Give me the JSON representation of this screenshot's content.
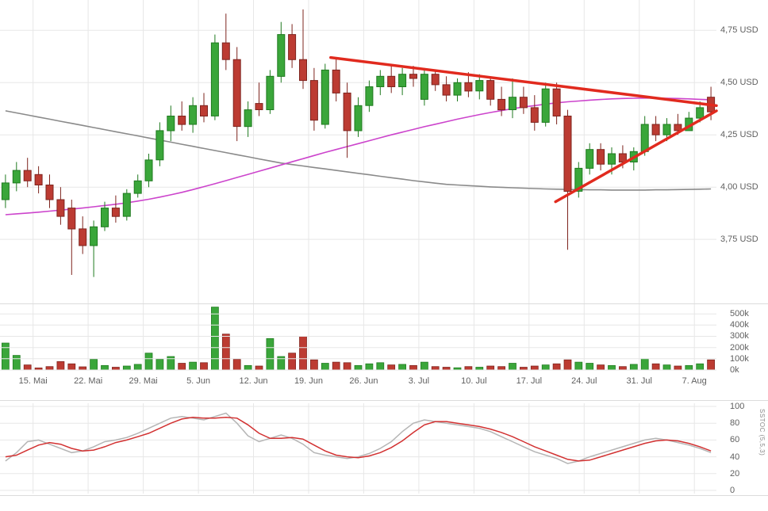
{
  "chart_data": {
    "type": "candlestick",
    "description": "Daily stock candlestick chart with volume and slow stochastic panels, two moving averages and a converging red trendline triangle",
    "price_axis": {
      "labels": [
        "4,75 USD",
        "4,50 USD",
        "4,25 USD",
        "4,00 USD",
        "3,75 USD"
      ],
      "values": [
        4.75,
        4.5,
        4.25,
        4.0,
        3.75
      ],
      "range": [
        3.47,
        4.88
      ]
    },
    "volume_axis": {
      "labels": [
        "500k",
        "400k",
        "300k",
        "200k",
        "100k",
        "0k"
      ],
      "values": [
        500,
        400,
        300,
        200,
        100,
        0
      ],
      "range": [
        0,
        620
      ]
    },
    "stoch_axis": {
      "labels": [
        "100",
        "80",
        "60",
        "40",
        "20",
        "0"
      ],
      "values": [
        100,
        80,
        60,
        40,
        20,
        0
      ],
      "range": [
        0,
        100
      ]
    },
    "x_labels": [
      {
        "index": 3,
        "label": "15. Mai"
      },
      {
        "index": 8,
        "label": "22. Mai"
      },
      {
        "index": 13,
        "label": "29. Mai"
      },
      {
        "index": 18,
        "label": "5. Jun"
      },
      {
        "index": 23,
        "label": "12. Jun"
      },
      {
        "index": 28,
        "label": "19. Jun"
      },
      {
        "index": 33,
        "label": "26. Jun"
      },
      {
        "index": 38,
        "label": "3. Jul"
      },
      {
        "index": 43,
        "label": "10. Jul"
      },
      {
        "index": 48,
        "label": "17. Jul"
      },
      {
        "index": 53,
        "label": "24. Jul"
      },
      {
        "index": 58,
        "label": "31. Jul"
      },
      {
        "index": 63,
        "label": "7. Aug"
      }
    ],
    "indicator_label": "SSTOC (5,5,3)",
    "candles": [
      [
        3.94,
        4.06,
        3.9,
        4.02
      ],
      [
        4.02,
        4.12,
        3.98,
        4.08
      ],
      [
        4.08,
        4.14,
        4.0,
        4.03
      ],
      [
        4.06,
        4.1,
        3.97,
        4.01
      ],
      [
        4.01,
        4.06,
        3.9,
        3.94
      ],
      [
        3.94,
        4.0,
        3.82,
        3.86
      ],
      [
        3.9,
        3.94,
        3.58,
        3.8
      ],
      [
        3.8,
        3.86,
        3.68,
        3.72
      ],
      [
        3.72,
        3.84,
        3.57,
        3.81
      ],
      [
        3.81,
        3.93,
        3.79,
        3.9
      ],
      [
        3.9,
        3.96,
        3.83,
        3.86
      ],
      [
        3.86,
        3.99,
        3.84,
        3.97
      ],
      [
        3.97,
        4.06,
        3.95,
        4.03
      ],
      [
        4.03,
        4.16,
        4.0,
        4.13
      ],
      [
        4.13,
        4.31,
        4.1,
        4.27
      ],
      [
        4.27,
        4.39,
        4.22,
        4.34
      ],
      [
        4.34,
        4.41,
        4.27,
        4.3
      ],
      [
        4.3,
        4.43,
        4.26,
        4.39
      ],
      [
        4.39,
        4.45,
        4.31,
        4.34
      ],
      [
        4.34,
        4.73,
        4.32,
        4.69
      ],
      [
        4.69,
        4.83,
        4.56,
        4.61
      ],
      [
        4.61,
        4.67,
        4.22,
        4.29
      ],
      [
        4.29,
        4.41,
        4.24,
        4.37
      ],
      [
        4.4,
        4.5,
        4.34,
        4.37
      ],
      [
        4.37,
        4.56,
        4.35,
        4.53
      ],
      [
        4.53,
        4.79,
        4.5,
        4.73
      ],
      [
        4.73,
        4.78,
        4.57,
        4.61
      ],
      [
        4.61,
        4.85,
        4.47,
        4.51
      ],
      [
        4.51,
        4.57,
        4.27,
        4.32
      ],
      [
        4.3,
        4.59,
        4.28,
        4.56
      ],
      [
        4.56,
        4.62,
        4.41,
        4.45
      ],
      [
        4.45,
        4.5,
        4.14,
        4.27
      ],
      [
        4.27,
        4.43,
        4.24,
        4.39
      ],
      [
        4.39,
        4.51,
        4.36,
        4.48
      ],
      [
        4.48,
        4.56,
        4.44,
        4.53
      ],
      [
        4.53,
        4.58,
        4.45,
        4.48
      ],
      [
        4.48,
        4.57,
        4.44,
        4.54
      ],
      [
        4.54,
        4.58,
        4.48,
        4.52
      ],
      [
        4.42,
        4.57,
        4.39,
        4.54
      ],
      [
        4.54,
        4.56,
        4.46,
        4.49
      ],
      [
        4.49,
        4.53,
        4.41,
        4.44
      ],
      [
        4.44,
        4.52,
        4.41,
        4.5
      ],
      [
        4.5,
        4.55,
        4.43,
        4.46
      ],
      [
        4.46,
        4.54,
        4.42,
        4.51
      ],
      [
        4.51,
        4.53,
        4.39,
        4.42
      ],
      [
        4.42,
        4.48,
        4.34,
        4.37
      ],
      [
        4.37,
        4.52,
        4.33,
        4.43
      ],
      [
        4.43,
        4.48,
        4.35,
        4.38
      ],
      [
        4.38,
        4.44,
        4.27,
        4.31
      ],
      [
        4.31,
        4.5,
        4.29,
        4.47
      ],
      [
        4.47,
        4.5,
        4.3,
        4.34
      ],
      [
        4.34,
        4.37,
        3.7,
        3.98
      ],
      [
        3.98,
        4.12,
        3.95,
        4.09
      ],
      [
        4.09,
        4.21,
        4.06,
        4.18
      ],
      [
        4.18,
        4.21,
        4.08,
        4.11
      ],
      [
        4.11,
        4.19,
        4.06,
        4.16
      ],
      [
        4.16,
        4.2,
        4.09,
        4.12
      ],
      [
        4.12,
        4.19,
        4.08,
        4.17
      ],
      [
        4.17,
        4.34,
        4.15,
        4.3
      ],
      [
        4.3,
        4.34,
        4.22,
        4.25
      ],
      [
        4.25,
        4.33,
        4.22,
        4.3
      ],
      [
        4.3,
        4.35,
        4.25,
        4.27
      ],
      [
        4.27,
        4.36,
        4.27,
        4.33
      ],
      [
        4.33,
        4.41,
        4.31,
        4.38
      ],
      [
        4.43,
        4.48,
        4.32,
        4.36
      ]
    ],
    "volumes": [
      240,
      130,
      45,
      18,
      30,
      75,
      55,
      28,
      95,
      40,
      25,
      35,
      50,
      150,
      95,
      120,
      60,
      70,
      65,
      560,
      320,
      95,
      40,
      35,
      280,
      120,
      150,
      300,
      90,
      60,
      70,
      65,
      40,
      55,
      65,
      45,
      50,
      40,
      70,
      30,
      25,
      20,
      30,
      25,
      35,
      30,
      60,
      25,
      35,
      45,
      55,
      90,
      70,
      60,
      45,
      40,
      30,
      50,
      100,
      55,
      45,
      35,
      40,
      55,
      90
    ],
    "stoch_k": [
      35,
      45,
      58,
      60,
      55,
      50,
      45,
      47,
      52,
      58,
      60,
      63,
      68,
      74,
      80,
      86,
      88,
      86,
      84,
      88,
      92,
      80,
      65,
      58,
      62,
      66,
      62,
      55,
      45,
      42,
      40,
      38,
      40,
      44,
      50,
      58,
      70,
      80,
      84,
      82,
      80,
      78,
      76,
      74,
      70,
      64,
      58,
      52,
      46,
      42,
      38,
      32,
      35,
      40,
      44,
      48,
      52,
      56,
      60,
      62,
      60,
      57,
      54,
      50,
      45
    ],
    "stoch_d": [
      40,
      42,
      48,
      54,
      57,
      55,
      50,
      47,
      48,
      52,
      57,
      60,
      64,
      68,
      74,
      80,
      85,
      87,
      86,
      86,
      87,
      86,
      78,
      68,
      62,
      62,
      63,
      61,
      54,
      47,
      42,
      40,
      39,
      41,
      45,
      51,
      59,
      69,
      78,
      82,
      82,
      80,
      78,
      76,
      73,
      69,
      64,
      58,
      52,
      47,
      42,
      37,
      35,
      36,
      40,
      44,
      48,
      52,
      56,
      59,
      60,
      59,
      56,
      52,
      47
    ],
    "ma_slow": [
      4.365,
      4.355,
      4.345,
      4.335,
      4.325,
      4.315,
      4.305,
      4.295,
      4.285,
      4.275,
      4.265,
      4.255,
      4.245,
      4.235,
      4.225,
      4.215,
      4.205,
      4.195,
      4.185,
      4.175,
      4.165,
      4.155,
      4.145,
      4.135,
      4.125,
      4.115,
      4.108,
      4.101,
      4.094,
      4.087,
      4.08,
      4.073,
      4.066,
      4.059,
      4.052,
      4.045,
      4.038,
      4.031,
      4.025,
      4.019,
      4.013,
      4.01,
      4.007,
      4.004,
      4.001,
      3.999,
      3.997,
      3.995,
      3.993,
      3.991,
      3.99,
      3.989,
      3.988,
      3.987,
      3.987,
      3.986,
      3.986,
      3.986,
      3.986,
      3.987,
      3.987,
      3.988,
      3.989,
      3.99,
      3.991
    ],
    "ma_fast": [
      3.868,
      3.872,
      3.876,
      3.88,
      3.885,
      3.89,
      3.895,
      3.9,
      3.906,
      3.912,
      3.918,
      3.925,
      3.933,
      3.942,
      3.952,
      3.963,
      3.975,
      3.988,
      4.002,
      4.016,
      4.031,
      4.046,
      4.061,
      4.076,
      4.091,
      4.106,
      4.121,
      4.136,
      4.151,
      4.166,
      4.18,
      4.194,
      4.208,
      4.222,
      4.236,
      4.25,
      4.263,
      4.276,
      4.289,
      4.301,
      4.313,
      4.325,
      4.336,
      4.347,
      4.357,
      4.366,
      4.375,
      4.383,
      4.39,
      4.397,
      4.403,
      4.408,
      4.412,
      4.416,
      4.419,
      4.422,
      4.424,
      4.425,
      4.426,
      4.426,
      4.425,
      4.424,
      4.422,
      4.42,
      4.418
    ],
    "trendlines": [
      {
        "i1": 30.0,
        "p1": 4.62,
        "i2": 65.0,
        "p2": 4.39,
        "role": "resistance"
      },
      {
        "i1": 50.4,
        "p1": 3.93,
        "i2": 65.0,
        "p2": 4.365,
        "role": "support"
      }
    ],
    "colors": {
      "up": "#3aa63a",
      "up_border": "#1f7a1f",
      "down": "#bc3b32",
      "down_border": "#7e241e",
      "ma_slow": "#8a8a8a",
      "ma_fast": "#cc44cc",
      "trend": "#e12a1e",
      "stoch_k": "#b5b5b5",
      "stoch_d": "#d23131",
      "grid": "#e7e7e7",
      "panel_border": "#dcdcdc",
      "axis_text": "#5f5f5f"
    }
  }
}
